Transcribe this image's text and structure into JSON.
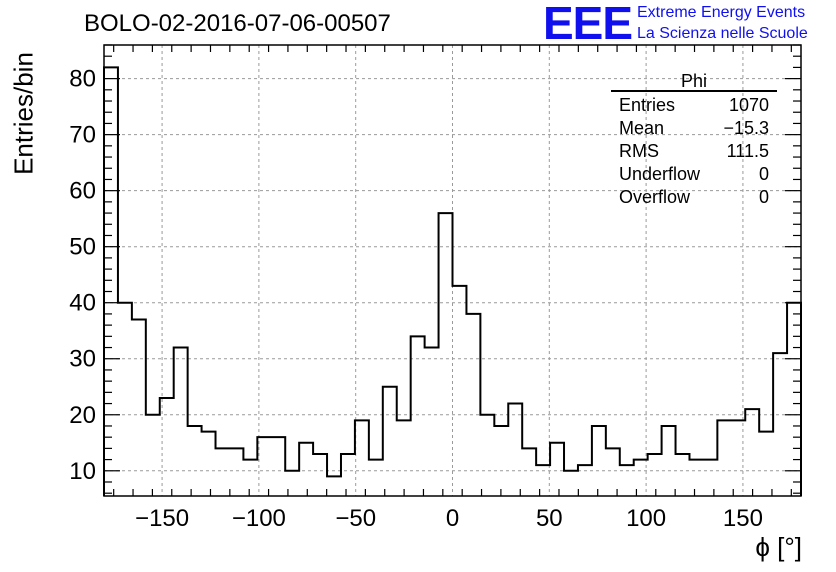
{
  "title": "BOLO-02-2016-07-06-00507",
  "logo": {
    "mark": "EEE",
    "line1": "Extreme Energy Events",
    "line2": "La Scienza nelle Scuole",
    "color": "#1010ee"
  },
  "stats": {
    "name": "Phi",
    "rows": [
      {
        "label": "Entries",
        "value": "1070"
      },
      {
        "label": "Mean",
        "value": "−15.3"
      },
      {
        "label": "RMS",
        "value": "111.5"
      },
      {
        "label": "Underflow",
        "value": "0"
      },
      {
        "label": "Overflow",
        "value": "0"
      }
    ]
  },
  "chart_data": {
    "type": "histogram",
    "title": "BOLO-02-2016-07-06-00507",
    "xlabel": "ϕ [°]",
    "ylabel": "Entries/bin",
    "xlim": [
      -180,
      180
    ],
    "ylim": [
      5.5,
      86
    ],
    "bin_width": 7.2,
    "x_ticks": [
      -150,
      -100,
      -50,
      0,
      50,
      100,
      150
    ],
    "x_tick_labels": [
      "−150",
      "−100",
      "−50",
      "0",
      "50",
      "100",
      "150"
    ],
    "y_ticks": [
      10,
      20,
      30,
      40,
      50,
      60,
      70,
      80
    ],
    "y_tick_labels": [
      "10",
      "20",
      "30",
      "40",
      "50",
      "60",
      "70",
      "80"
    ],
    "grid": true,
    "values": [
      82,
      40,
      37,
      20,
      23,
      32,
      18,
      17,
      14,
      14,
      12,
      16,
      16,
      10,
      15,
      13,
      9,
      13,
      19,
      12,
      25,
      19,
      34,
      32,
      56,
      43,
      38,
      20,
      18,
      22,
      14,
      11,
      15,
      10,
      11,
      18,
      14,
      11,
      12,
      13,
      18,
      13,
      12,
      12,
      19,
      19,
      21,
      17,
      31,
      40
    ]
  }
}
